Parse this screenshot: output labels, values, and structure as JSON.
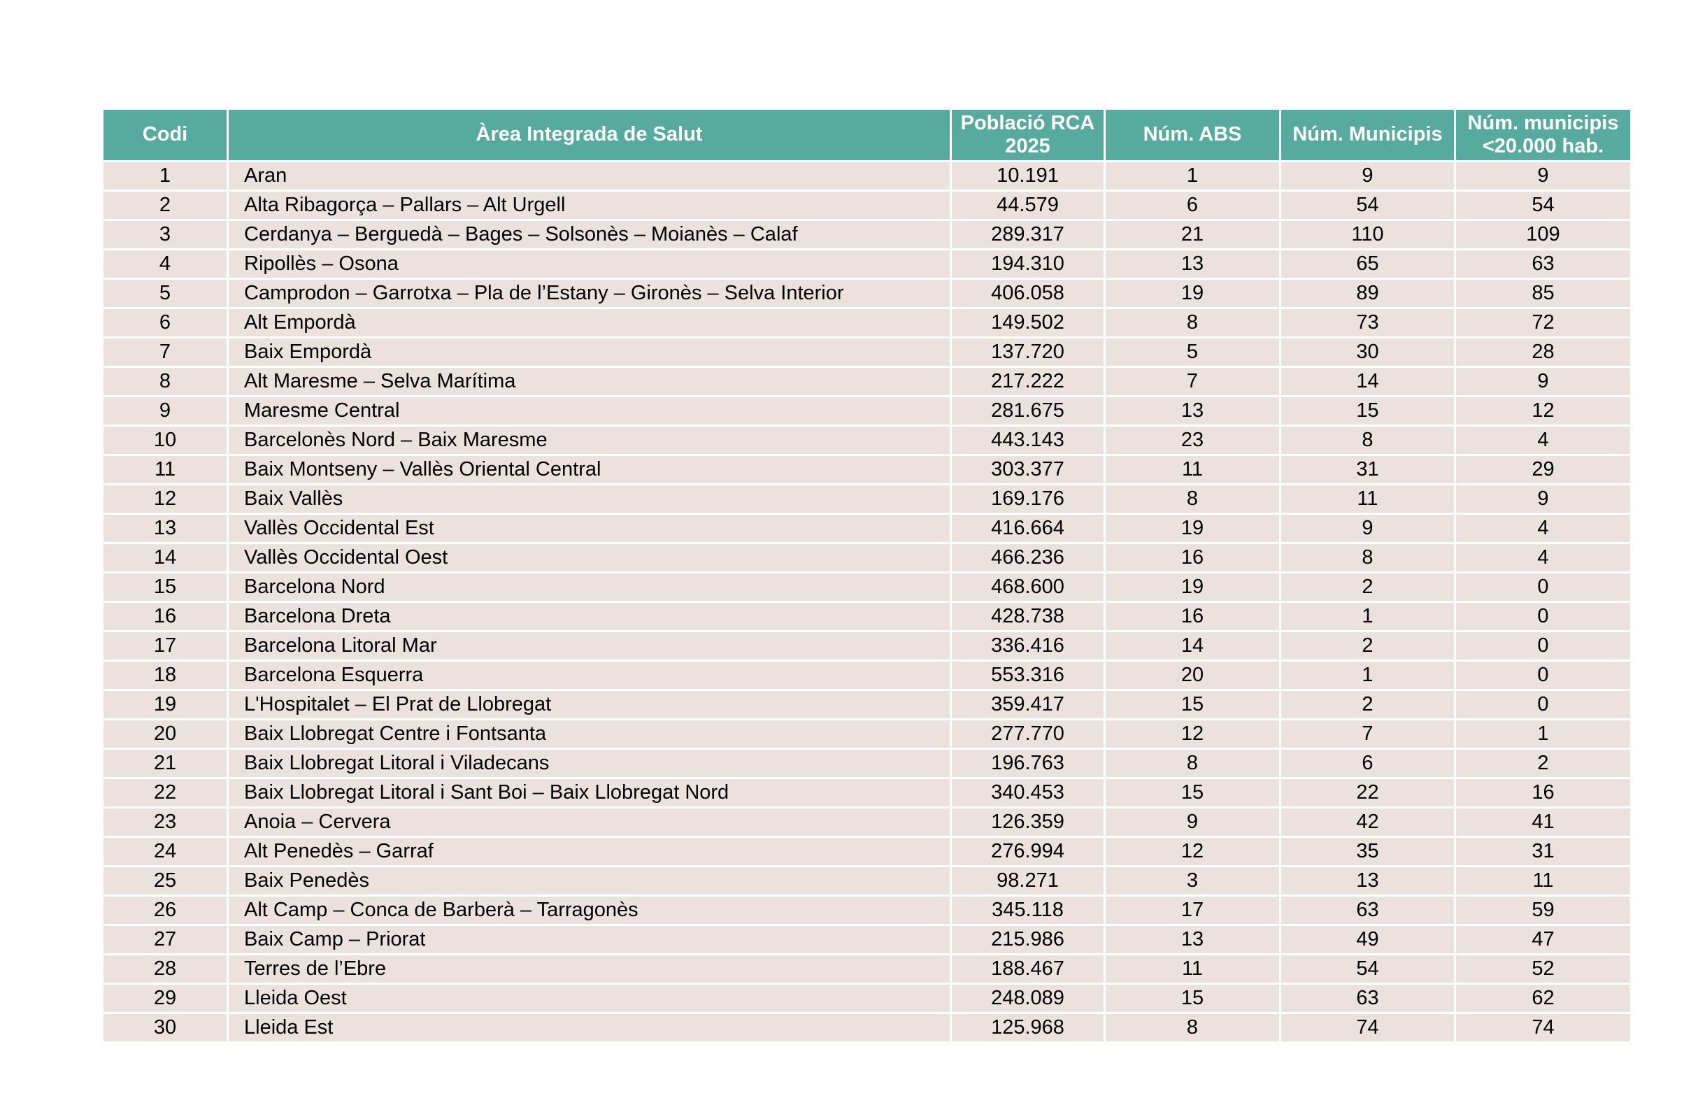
{
  "chart_data": {
    "type": "table",
    "title": "",
    "columns": [
      "Codi",
      "Àrea Integrada de Salut",
      "Població RCA 2025",
      "Núm. ABS",
      "Núm. Municipis",
      "Núm. municipis <20.000 hab."
    ],
    "rows": [
      [
        "1",
        "Aran",
        "10.191",
        "1",
        "9",
        "9"
      ],
      [
        "2",
        "Alta Ribagorça – Pallars – Alt Urgell",
        "44.579",
        "6",
        "54",
        "54"
      ],
      [
        "3",
        "Cerdanya – Berguedà – Bages – Solsonès – Moianès – Calaf",
        "289.317",
        "21",
        "110",
        "109"
      ],
      [
        "4",
        "Ripollès – Osona",
        "194.310",
        "13",
        "65",
        "63"
      ],
      [
        "5",
        "Camprodon – Garrotxa – Pla de l’Estany – Gironès – Selva Interior",
        "406.058",
        "19",
        "89",
        "85"
      ],
      [
        "6",
        "Alt Empordà",
        "149.502",
        "8",
        "73",
        "72"
      ],
      [
        "7",
        "Baix Empordà",
        "137.720",
        "5",
        "30",
        "28"
      ],
      [
        "8",
        "Alt Maresme – Selva Marítima",
        "217.222",
        "7",
        "14",
        "9"
      ],
      [
        "9",
        "Maresme Central",
        "281.675",
        "13",
        "15",
        "12"
      ],
      [
        "10",
        "Barcelonès Nord – Baix Maresme",
        "443.143",
        "23",
        "8",
        "4"
      ],
      [
        "11",
        "Baix Montseny – Vallès Oriental Central",
        "303.377",
        "11",
        "31",
        "29"
      ],
      [
        "12",
        "Baix Vallès",
        "169.176",
        "8",
        "11",
        "9"
      ],
      [
        "13",
        "Vallès Occidental Est",
        "416.664",
        "19",
        "9",
        "4"
      ],
      [
        "14",
        "Vallès Occidental Oest",
        "466.236",
        "16",
        "8",
        "4"
      ],
      [
        "15",
        "Barcelona Nord",
        "468.600",
        "19",
        "2",
        "0"
      ],
      [
        "16",
        "Barcelona Dreta",
        "428.738",
        "16",
        "1",
        "0"
      ],
      [
        "17",
        "Barcelona Litoral Mar",
        "336.416",
        "14",
        "2",
        "0"
      ],
      [
        "18",
        "Barcelona Esquerra",
        "553.316",
        "20",
        "1",
        "0"
      ],
      [
        "19",
        "L'Hospitalet – El Prat de Llobregat",
        "359.417",
        "15",
        "2",
        "0"
      ],
      [
        "20",
        "Baix Llobregat Centre i Fontsanta",
        "277.770",
        "12",
        "7",
        "1"
      ],
      [
        "21",
        "Baix Llobregat Litoral i Viladecans",
        "196.763",
        "8",
        "6",
        "2"
      ],
      [
        "22",
        "Baix Llobregat Litoral i Sant Boi – Baix Llobregat Nord",
        "340.453",
        "15",
        "22",
        "16"
      ],
      [
        "23",
        "Anoia – Cervera",
        "126.359",
        "9",
        "42",
        "41"
      ],
      [
        "24",
        "Alt Penedès – Garraf",
        "276.994",
        "12",
        "35",
        "31"
      ],
      [
        "25",
        "Baix Penedès",
        "98.271",
        "3",
        "13",
        "11"
      ],
      [
        "26",
        "Alt Camp – Conca de Barberà – Tarragonès",
        "345.118",
        "17",
        "63",
        "59"
      ],
      [
        "27",
        "Baix Camp – Priorat",
        "215.986",
        "13",
        "49",
        "47"
      ],
      [
        "28",
        "Terres de l’Ebre",
        "188.467",
        "11",
        "54",
        "52"
      ],
      [
        "29",
        "Lleida Oest",
        "248.089",
        "15",
        "63",
        "62"
      ],
      [
        "30",
        "Lleida Est",
        "125.968",
        "8",
        "74",
        "74"
      ]
    ]
  },
  "colors": {
    "header_bg": "#56AB9E",
    "header_text": "#FFFFFF",
    "row_bg": "#EBE2DE",
    "body_text": "#000000"
  }
}
